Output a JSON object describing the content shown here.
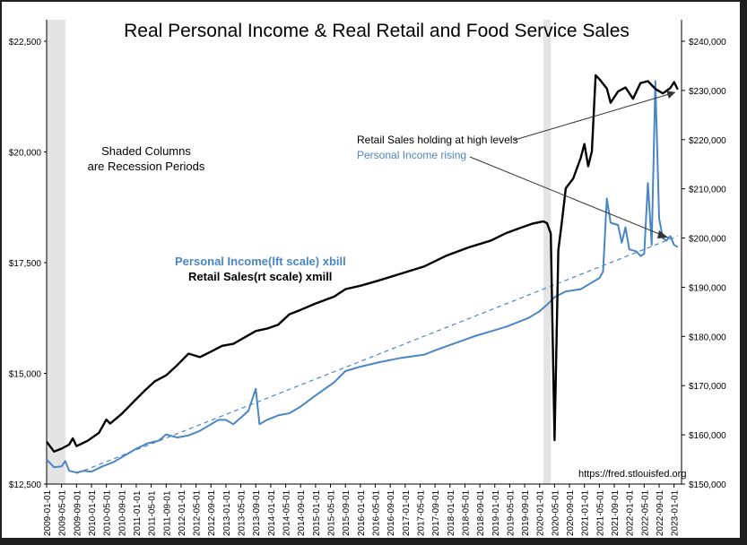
{
  "chart_data": {
    "type": "line",
    "title": "Real Personal Income & Real Retail and Food Service Sales",
    "left_axis": {
      "ticks": [
        "$12,500",
        "$15,000",
        "$17,500",
        "$20,000",
        "$22,500"
      ],
      "tick_values": [
        12500,
        15000,
        17500,
        20000,
        22500
      ],
      "range": [
        12500,
        22500
      ]
    },
    "right_axis": {
      "ticks": [
        "$150,000",
        "$160,000",
        "$170,000",
        "$180,000",
        "$190,000",
        "$200,000",
        "$210,000",
        "$220,000",
        "$230,000",
        "$240,000"
      ],
      "tick_values": [
        150000,
        160000,
        170000,
        180000,
        190000,
        200000,
        210000,
        220000,
        230000,
        240000
      ],
      "range": [
        150000,
        240000
      ]
    },
    "x_axis": {
      "start": "2009-01",
      "end": "2023-02",
      "tick_labels": [
        "2009-01-01",
        "2009-05-01",
        "2009-09-01",
        "2010-01-01",
        "2010-05-01",
        "2010-09-01",
        "2011-01-01",
        "2011-05-01",
        "2011-09-01",
        "2012-01-01",
        "2012-05-01",
        "2012-09-01",
        "2013-01-01",
        "2013-05-01",
        "2013-09-01",
        "2014-01-01",
        "2014-05-01",
        "2014-09-01",
        "2015-01-01",
        "2015-05-01",
        "2015-09-01",
        "2016-01-01",
        "2016-05-01",
        "2016-09-01",
        "2017-01-01",
        "2017-05-01",
        "2017-09-01",
        "2018-01-01",
        "2018-05-01",
        "2018-09-01",
        "2019-01-01",
        "2019-05-01",
        "2019-09-01",
        "2020-01-01",
        "2020-05-01",
        "2020-09-01",
        "2021-01-01",
        "2021-05-01",
        "2021-09-01",
        "2022-01-01",
        "2022-05-01",
        "2022-09-01",
        "2023-01-01"
      ]
    },
    "recessions": [
      {
        "start": "2009-01",
        "end": "2009-06"
      },
      {
        "start": "2020-02",
        "end": "2020-04"
      }
    ],
    "series": [
      {
        "name": "Personal Income(lft scale) xbill",
        "axis": "left",
        "color": "#4a86c5",
        "points": [
          [
            "2009-01",
            13050
          ],
          [
            "2009-03",
            12880
          ],
          [
            "2009-05",
            12900
          ],
          [
            "2009-06",
            13020
          ],
          [
            "2009-07",
            12800
          ],
          [
            "2009-09",
            12760
          ],
          [
            "2009-11",
            12800
          ],
          [
            "2010-01",
            12780
          ],
          [
            "2010-04",
            12900
          ],
          [
            "2010-07",
            13000
          ],
          [
            "2010-10",
            13150
          ],
          [
            "2011-01",
            13300
          ],
          [
            "2011-04",
            13420
          ],
          [
            "2011-07",
            13480
          ],
          [
            "2011-09",
            13620
          ],
          [
            "2011-12",
            13550
          ],
          [
            "2012-03",
            13600
          ],
          [
            "2012-06",
            13700
          ],
          [
            "2012-09",
            13850
          ],
          [
            "2012-11",
            13950
          ],
          [
            "2013-01",
            13950
          ],
          [
            "2013-03",
            13850
          ],
          [
            "2013-05",
            14000
          ],
          [
            "2013-07",
            14150
          ],
          [
            "2013-08",
            14400
          ],
          [
            "2013-09",
            14650
          ],
          [
            "2013-10",
            13850
          ],
          [
            "2013-12",
            13950
          ],
          [
            "2014-03",
            14050
          ],
          [
            "2014-06",
            14100
          ],
          [
            "2014-09",
            14250
          ],
          [
            "2015-01",
            14500
          ],
          [
            "2015-06",
            14800
          ],
          [
            "2015-09",
            15050
          ],
          [
            "2016-01",
            15150
          ],
          [
            "2016-06",
            15250
          ],
          [
            "2016-12",
            15350
          ],
          [
            "2017-06",
            15420
          ],
          [
            "2017-10",
            15550
          ],
          [
            "2018-03",
            15700
          ],
          [
            "2018-08",
            15850
          ],
          [
            "2018-12",
            15950
          ],
          [
            "2019-04",
            16050
          ],
          [
            "2019-07",
            16150
          ],
          [
            "2019-10",
            16250
          ],
          [
            "2020-01",
            16400
          ],
          [
            "2020-03",
            16550
          ],
          [
            "2020-05",
            16720
          ],
          [
            "2020-08",
            16850
          ],
          [
            "2020-12",
            16900
          ],
          [
            "2021-03",
            17050
          ],
          [
            "2021-05",
            17150
          ],
          [
            "2021-06",
            17300
          ],
          [
            "2021-07",
            18950
          ],
          [
            "2021-08",
            18400
          ],
          [
            "2021-10",
            18350
          ],
          [
            "2021-11",
            17950
          ],
          [
            "2021-12",
            18300
          ],
          [
            "2022-01",
            17800
          ],
          [
            "2022-03",
            17750
          ],
          [
            "2022-04",
            17650
          ],
          [
            "2022-05",
            17700
          ],
          [
            "2022-06",
            19300
          ],
          [
            "2022-07",
            17900
          ],
          [
            "2022-08",
            21600
          ],
          [
            "2022-09",
            18500
          ],
          [
            "2022-10",
            18050
          ],
          [
            "2022-11",
            18000
          ],
          [
            "2022-12",
            18100
          ],
          [
            "2023-01",
            17900
          ],
          [
            "2023-02",
            17850
          ]
        ]
      },
      {
        "name": "Retail Sales(rt scale) xmill",
        "axis": "right",
        "color": "#000000",
        "points": [
          [
            "2009-01",
            158600
          ],
          [
            "2009-03",
            156600
          ],
          [
            "2009-05",
            157200
          ],
          [
            "2009-07",
            158000
          ],
          [
            "2009-08",
            159300
          ],
          [
            "2009-09",
            157700
          ],
          [
            "2009-12",
            158800
          ],
          [
            "2010-03",
            160400
          ],
          [
            "2010-05",
            163100
          ],
          [
            "2010-06",
            162300
          ],
          [
            "2010-09",
            164200
          ],
          [
            "2010-12",
            166500
          ],
          [
            "2011-03",
            168800
          ],
          [
            "2011-06",
            170900
          ],
          [
            "2011-09",
            172100
          ],
          [
            "2011-12",
            174200
          ],
          [
            "2012-03",
            176500
          ],
          [
            "2012-06",
            175800
          ],
          [
            "2012-09",
            176900
          ],
          [
            "2012-12",
            178100
          ],
          [
            "2013-03",
            178500
          ],
          [
            "2013-06",
            179800
          ],
          [
            "2013-09",
            181100
          ],
          [
            "2013-12",
            181600
          ],
          [
            "2014-03",
            182400
          ],
          [
            "2014-06",
            184500
          ],
          [
            "2014-09",
            185400
          ],
          [
            "2015-01",
            186700
          ],
          [
            "2015-06",
            188100
          ],
          [
            "2015-09",
            189600
          ],
          [
            "2016-01",
            190300
          ],
          [
            "2016-06",
            191400
          ],
          [
            "2016-12",
            192800
          ],
          [
            "2017-06",
            194200
          ],
          [
            "2017-12",
            196400
          ],
          [
            "2018-06",
            198100
          ],
          [
            "2018-12",
            199500
          ],
          [
            "2019-04",
            201000
          ],
          [
            "2019-08",
            202100
          ],
          [
            "2019-11",
            202900
          ],
          [
            "2020-02",
            203400
          ],
          [
            "2020-03",
            203000
          ],
          [
            "2020-04",
            200900
          ],
          [
            "2020-05",
            158900
          ],
          [
            "2020-06",
            197500
          ],
          [
            "2020-07",
            203500
          ],
          [
            "2020-08",
            210100
          ],
          [
            "2020-10",
            212100
          ],
          [
            "2020-12",
            216300
          ],
          [
            "2021-01",
            219100
          ],
          [
            "2021-02",
            214600
          ],
          [
            "2021-03",
            217600
          ],
          [
            "2021-04",
            233100
          ],
          [
            "2021-05",
            232300
          ],
          [
            "2021-07",
            230400
          ],
          [
            "2021-08",
            227500
          ],
          [
            "2021-10",
            229800
          ],
          [
            "2021-12",
            230600
          ],
          [
            "2022-02",
            228300
          ],
          [
            "2022-04",
            231500
          ],
          [
            "2022-06",
            231900
          ],
          [
            "2022-08",
            230300
          ],
          [
            "2022-10",
            229400
          ],
          [
            "2022-12",
            230500
          ],
          [
            "2023-01",
            231700
          ],
          [
            "2023-02",
            230200
          ]
        ]
      }
    ],
    "trend_line": {
      "axis": "left",
      "style": "dashed",
      "color": "#4a86c5",
      "from": [
        "2009-09",
        12740
      ],
      "to": [
        "2023-02",
        18100
      ]
    },
    "annotations": {
      "shaded_line1": "Shaded Columns",
      "shaded_line2": "are Recession Periods",
      "retail_holding": "Retail Sales holding at high levels",
      "income_rising": "Personal Income rising",
      "legend_income": "Personal Income(lft scale) xbill",
      "legend_retail": "Retail Sales(rt scale) xmill",
      "source": "https://fred.stlouisfed.org"
    }
  }
}
